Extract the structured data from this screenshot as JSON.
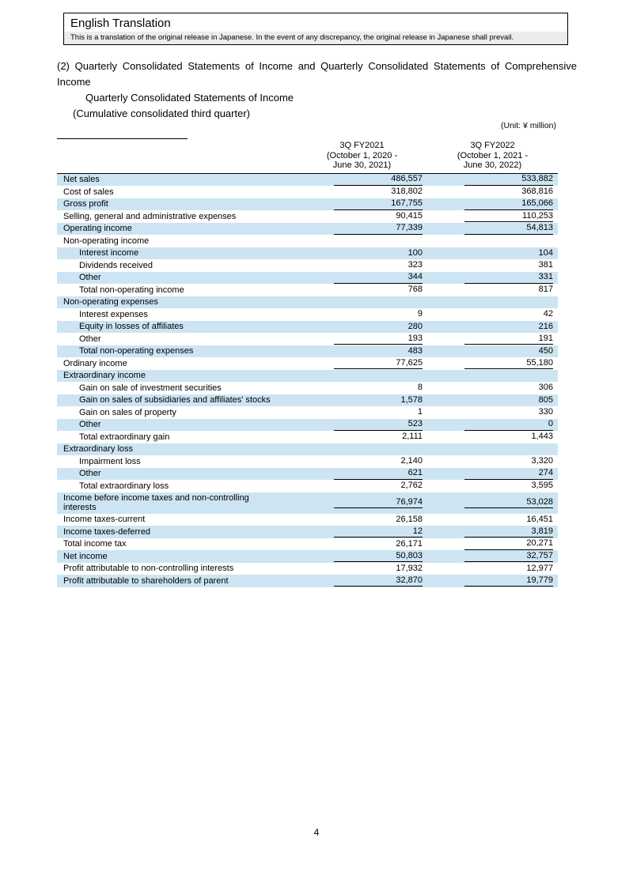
{
  "header_box": {
    "title": "English Translation",
    "note": "This is a translation of the original release in Japanese. In the event of any discrepancy, the original release in Japanese shall prevail."
  },
  "section": {
    "heading": "(2) Quarterly Consolidated Statements of Income and Quarterly Consolidated Statements of Comprehensive Income",
    "statement_title": "Quarterly Consolidated Statements of Income",
    "period_note": "(Cumulative consolidated third quarter)",
    "unit_note": "(Unit: ¥ million)"
  },
  "table": {
    "columns": [
      {
        "lines": [
          "3Q FY2021",
          "(October 1, 2020 -",
          "June 30, 2021)"
        ]
      },
      {
        "lines": [
          "3Q FY2022",
          "(October 1, 2021 -",
          "June 30, 2022)"
        ]
      }
    ],
    "rows": [
      {
        "label": "Net sales",
        "indent": 0,
        "v1": "486,557",
        "v2": "533,882",
        "u1": true,
        "u2": true
      },
      {
        "label": "Cost of sales",
        "indent": 0,
        "v1": "318,802",
        "v2": "368,816"
      },
      {
        "label": "Gross profit",
        "indent": 0,
        "v1": "167,755",
        "v2": "165,066",
        "u1": true,
        "u2": true
      },
      {
        "label": "Selling, general and administrative expenses",
        "indent": 0,
        "v1": "90,415",
        "v2": "110,253",
        "u2": true
      },
      {
        "label": "Operating income",
        "indent": 0,
        "v1": "77,339",
        "v2": "54,813",
        "u1": true,
        "u2": true
      },
      {
        "label": "Non-operating income",
        "indent": 0,
        "section": true,
        "v1": "",
        "v2": ""
      },
      {
        "label": "Interest income",
        "indent": 1,
        "v1": "100",
        "v2": "104"
      },
      {
        "label": "Dividends received",
        "indent": 1,
        "v1": "323",
        "v2": "381"
      },
      {
        "label": "Other",
        "indent": 1,
        "v1": "344",
        "v2": "331",
        "u1": true,
        "u2": true
      },
      {
        "label": "Total non-operating income",
        "indent": 1,
        "v1": "768",
        "v2": "817"
      },
      {
        "label": "Non-operating expenses",
        "indent": 0,
        "section": true,
        "v1": "",
        "v2": ""
      },
      {
        "label": "Interest expenses",
        "indent": 1,
        "v1": "9",
        "v2": "42"
      },
      {
        "label": "Equity in losses of affiliates",
        "indent": 1,
        "v1": "280",
        "v2": "216"
      },
      {
        "label": "Other",
        "indent": 1,
        "v1": "193",
        "v2": "191",
        "u1": true,
        "u2": true
      },
      {
        "label": "Total non-operating expenses",
        "indent": 1,
        "v1": "483",
        "v2": "450"
      },
      {
        "label": "Ordinary income",
        "indent": 0,
        "v1": "77,625",
        "v2": "55,180",
        "u1": true,
        "u2": true
      },
      {
        "label": "Extraordinary income",
        "indent": 0,
        "section": true,
        "v1": "",
        "v2": ""
      },
      {
        "label": "Gain on sale of investment securities",
        "indent": 1,
        "v1": "8",
        "v2": "306"
      },
      {
        "label": "Gain on sales of subsidiaries and affiliates' stocks",
        "indent": 1,
        "v1": "1,578",
        "v2": "805"
      },
      {
        "label": "Gain on sales of property",
        "indent": 1,
        "v1": "1",
        "v2": "330"
      },
      {
        "label": "Other",
        "indent": 1,
        "v1": "523",
        "v2": "0",
        "u1": true,
        "u2": true
      },
      {
        "label": "Total extraordinary gain",
        "indent": 1,
        "v1": "2,111",
        "v2": "1,443"
      },
      {
        "label": "Extraordinary loss",
        "indent": 0,
        "section": true,
        "v1": "",
        "v2": ""
      },
      {
        "label": "Impairment loss",
        "indent": 1,
        "v1": "2,140",
        "v2": "3,320"
      },
      {
        "label": "Other",
        "indent": 1,
        "v1": "621",
        "v2": "274",
        "u1": true,
        "u2": true
      },
      {
        "label": "Total extraordinary loss",
        "indent": 1,
        "v1": "2,762",
        "v2": "3,595"
      },
      {
        "label": "Income before income taxes and non-controlling interests",
        "indent": 0,
        "wrap": true,
        "v1": "76,974",
        "v2": "53,028",
        "u1": true,
        "u2": true
      },
      {
        "label": "Income taxes-current",
        "indent": 0,
        "v1": "26,158",
        "v2": "16,451"
      },
      {
        "label": "Income taxes-deferred",
        "indent": 0,
        "v1": "12",
        "v2": "3,819",
        "u1": true,
        "u2": true
      },
      {
        "label": "Total income tax",
        "indent": 0,
        "v1": "26,171",
        "v2": "20,271",
        "u2": true
      },
      {
        "label": "Net income",
        "indent": 0,
        "v1": "50,803",
        "v2": "32,757",
        "u1": true,
        "u2": true
      },
      {
        "label": "Profit attributable to non-controlling interests",
        "indent": 0,
        "v1": "17,932",
        "v2": "12,977"
      },
      {
        "label": "Profit attributable to shareholders of parent",
        "indent": 0,
        "v1": "32,870",
        "v2": "19,779",
        "u1": true,
        "u2": true
      }
    ]
  },
  "footer": {
    "page_number": "4"
  },
  "colors": {
    "row_shade": "#cde4f2",
    "note_strip_bg": "#ececec"
  }
}
